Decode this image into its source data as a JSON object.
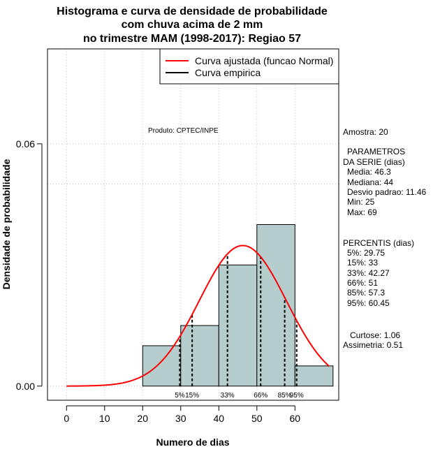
{
  "chart_data": {
    "type": "histogram",
    "title_lines": [
      "Histograma e curva de densidade de probabilidade",
      "com chuva acima de 2 mm",
      "no trimestre MAM (1998-2017): Regiao 57"
    ],
    "xlabel": "Numero de dias",
    "ylabel": "Densidade de probabilidade",
    "xlim": [
      -5,
      71.5
    ],
    "ylim": [
      -0.0035,
      0.0835
    ],
    "x_ticks": [
      0,
      10,
      20,
      30,
      40,
      50,
      60
    ],
    "x_tick_labels": [
      "0",
      "10",
      "20",
      "30",
      "40",
      "50",
      "60"
    ],
    "y_ticks": [
      0.0,
      0.06
    ],
    "y_tick_labels": [
      "0.00",
      "0.06"
    ],
    "grid": true,
    "bins": [
      {
        "start": 20,
        "end": 30,
        "density": 0.01
      },
      {
        "start": 30,
        "end": 40,
        "density": 0.015
      },
      {
        "start": 40,
        "end": 50,
        "density": 0.03
      },
      {
        "start": 50,
        "end": 60,
        "density": 0.04
      },
      {
        "start": 60,
        "end": 70,
        "density": 0.005
      }
    ],
    "normal_curve": {
      "mean": 46.3,
      "sd": 11.46,
      "x_from": 0,
      "x_to": 69
    },
    "percentile_lines": [
      {
        "label": "5%",
        "value": 29.75
      },
      {
        "label": "15%",
        "value": 33
      },
      {
        "label": "33%",
        "value": 42.27
      },
      {
        "label": "66%",
        "value": 51
      },
      {
        "label": "85%",
        "value": 57.3
      },
      {
        "label": "95%",
        "value": 60.45
      }
    ],
    "legend": {
      "position": "top-right",
      "entries": [
        {
          "label": "Curva ajustada (funcao Normal)",
          "color": "#ff0000"
        },
        {
          "label": "Curva empirica",
          "color": "#000000"
        }
      ]
    },
    "annotation": "Produto: CPTEC/INPE",
    "colors": {
      "bar_fill": "#b5cdcd",
      "curve": "#ff0000",
      "grid": "#bdbdbd"
    }
  },
  "side_panel": {
    "amostra": "Amostra: 20",
    "params_title_1": "PARAMETROS",
    "params_title_2": "DA SERIE (dias)",
    "media": "Media: 46.3",
    "mediana": "Mediana: 44",
    "desvio": "Desvio padrao: 11.46",
    "min": "Min: 25",
    "max": "Max: 69",
    "percentis_title": "PERCENTIS (dias)",
    "p5": "5%: 29.75",
    "p15": "15%: 33",
    "p33": "33%: 42.27",
    "p66": "66%: 51",
    "p85": "85%: 57.3",
    "p95": "95%: 60.45",
    "curtose": "Curtose: 1.06",
    "assimetria": "Assimetria: 0.51"
  }
}
